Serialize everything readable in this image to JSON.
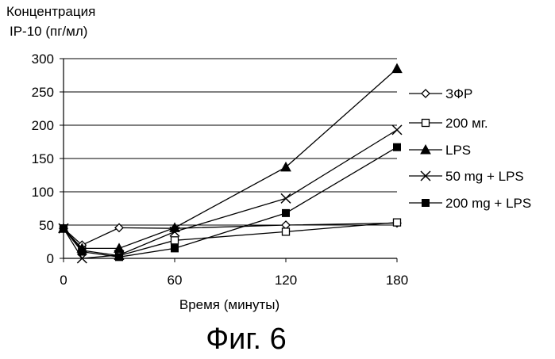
{
  "chart_data": {
    "type": "line",
    "ytitle_line1": "Концентрация",
    "ytitle_line2": "IP-10 (пг/мл)",
    "xlabel": "Время (минуты)",
    "xticks": [
      0,
      60,
      120,
      180
    ],
    "yticks": [
      0,
      50,
      100,
      150,
      200,
      250,
      300
    ],
    "xlim": [
      0,
      180
    ],
    "ylim": [
      0,
      300
    ],
    "grid": "horizontal",
    "legend": "right",
    "series": [
      {
        "name": "ЗФР",
        "marker": "diamond-open",
        "x": [
          0,
          10,
          30,
          60,
          120,
          180
        ],
        "y": [
          45,
          20,
          46,
          45,
          50,
          53
        ]
      },
      {
        "name": "200 мг.",
        "marker": "square-open",
        "x": [
          0,
          10,
          30,
          60,
          120,
          180
        ],
        "y": [
          45,
          12,
          4,
          27,
          40,
          54
        ]
      },
      {
        "name": "LPS",
        "marker": "triangle-filled",
        "x": [
          0,
          10,
          30,
          60,
          120,
          180
        ],
        "y": [
          45,
          15,
          15,
          46,
          137,
          285
        ]
      },
      {
        "name": "50 mg + LPS",
        "marker": "cross",
        "x": [
          0,
          10,
          30,
          60,
          120,
          180
        ],
        "y": [
          45,
          0,
          5,
          40,
          90,
          193
        ]
      },
      {
        "name": "200 mg + LPS",
        "marker": "square-filled",
        "x": [
          0,
          10,
          30,
          60,
          120,
          180
        ],
        "y": [
          45,
          10,
          2,
          15,
          68,
          167
        ]
      }
    ]
  },
  "caption": "Фиг. 6"
}
